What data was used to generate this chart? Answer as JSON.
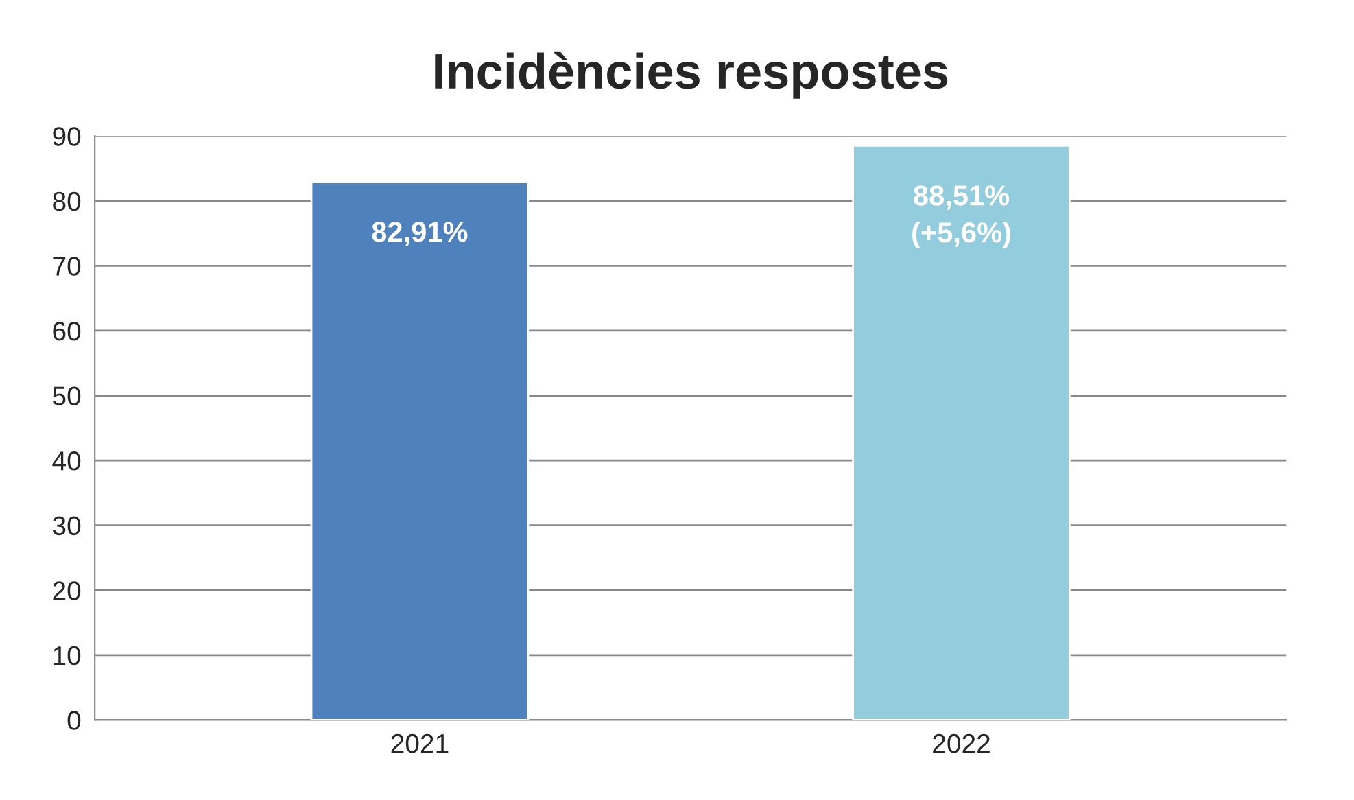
{
  "chart_data": {
    "type": "bar",
    "title": "Incidències respostes",
    "categories": [
      "2021",
      "2022"
    ],
    "values": [
      82.91,
      88.51
    ],
    "colors": [
      "#4f81bd",
      "#93cddd"
    ],
    "value_labels": [
      "82,91%",
      "88,51%\n(+5,6%)"
    ],
    "ylim": [
      0,
      90
    ],
    "yticks": [
      0,
      10,
      20,
      30,
      40,
      50,
      60,
      70,
      80,
      90
    ],
    "grid": "y",
    "legend": false
  }
}
